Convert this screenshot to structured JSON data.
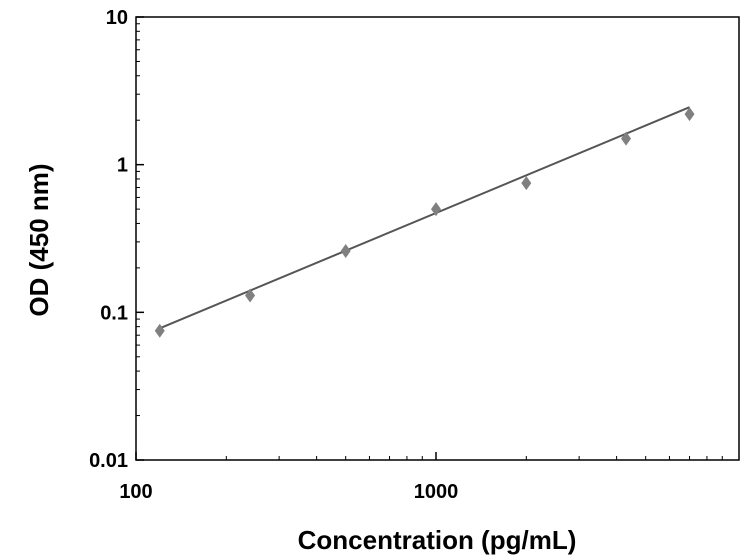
{
  "chart_data": {
    "type": "scatter",
    "title": "",
    "xlabel": "Concentration (pg/mL)",
    "ylabel": "OD (450 nm)",
    "x_scale": "log",
    "y_scale": "log",
    "xlim": [
      100,
      7000
    ],
    "ylim": [
      0.01,
      10
    ],
    "x_ticks": [
      {
        "value": 100,
        "label": "100"
      },
      {
        "value": 1000,
        "label": "1000"
      }
    ],
    "y_ticks": [
      {
        "value": 10,
        "label": "10"
      },
      {
        "value": 1,
        "label": "1"
      },
      {
        "value": 0.1,
        "label": "0.1"
      },
      {
        "value": 0.01,
        "label": "0.01"
      }
    ],
    "grid": false,
    "legend": "none",
    "series": [
      {
        "x": [
          120,
          240,
          500,
          1000,
          2000,
          4300,
          7000
        ],
        "y": [
          0.075,
          0.13,
          0.26,
          0.5,
          0.75,
          1.5,
          2.2
        ]
      }
    ],
    "fit_line": {
      "type": "linear-log-log",
      "x": [
        120,
        7000
      ],
      "y": [
        0.078,
        2.45
      ]
    },
    "colors": {
      "marker": "#808080",
      "line": "#555555",
      "axis": "#000000"
    }
  }
}
